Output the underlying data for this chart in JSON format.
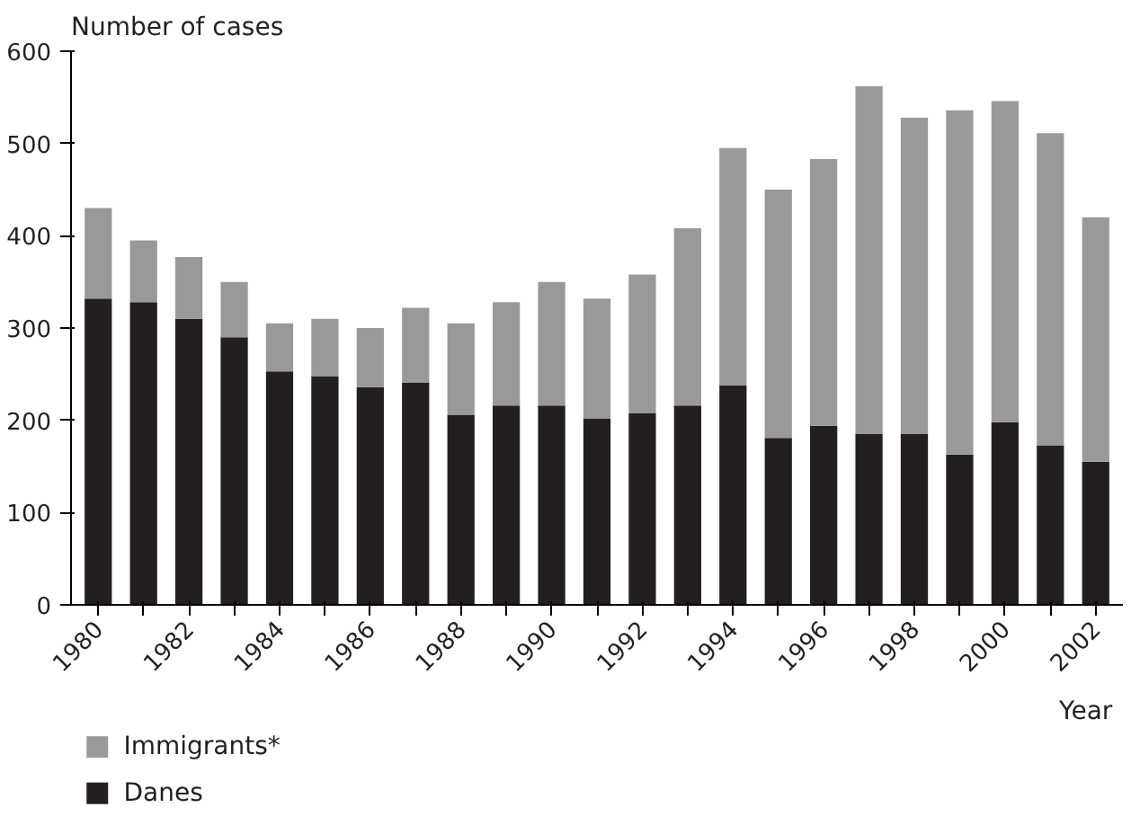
{
  "chart_data": {
    "type": "bar",
    "stacked": true,
    "ylabel": "Number of cases",
    "xlabel": "Year",
    "x": [
      1980,
      1981,
      1982,
      1983,
      1984,
      1985,
      1986,
      1987,
      1988,
      1989,
      1990,
      1991,
      1992,
      1993,
      1994,
      1995,
      1996,
      1997,
      1998,
      1999,
      2000,
      2001,
      2002
    ],
    "series": [
      {
        "name": "Danes",
        "color": "#231f20",
        "values": [
          332,
          328,
          310,
          290,
          253,
          248,
          236,
          241,
          206,
          216,
          216,
          202,
          208,
          216,
          238,
          181,
          194,
          185,
          185,
          163,
          198,
          173,
          155
        ]
      },
      {
        "name": "Immigrants*",
        "color": "#999999",
        "values": [
          98,
          67,
          67,
          60,
          52,
          62,
          64,
          81,
          99,
          112,
          134,
          130,
          150,
          192,
          257,
          269,
          289,
          377,
          343,
          373,
          348,
          338,
          265
        ]
      }
    ],
    "xlim": [
      1979.4,
      2002.6
    ],
    "xticks": [
      1980,
      {
        "value": 1981,
        "label": null
      },
      1982,
      {
        "value": 1983,
        "label": null
      },
      1984,
      {
        "value": 1985,
        "label": null
      },
      1986,
      {
        "value": 1987,
        "label": null
      },
      1988,
      {
        "value": 1989,
        "label": null
      },
      1990,
      {
        "value": 1991,
        "label": null
      },
      1992,
      {
        "value": 1993,
        "label": null
      },
      1994,
      {
        "value": 1995,
        "label": null
      },
      1996,
      {
        "value": 1997,
        "label": null
      },
      1998,
      {
        "value": 1999,
        "label": null
      },
      2000,
      {
        "value": 2001,
        "label": null
      },
      2002
    ],
    "ylim": [
      0,
      600
    ],
    "yticks": [
      0,
      100,
      200,
      300,
      400,
      500,
      600
    ],
    "grid": false,
    "legend": "bottom left"
  }
}
